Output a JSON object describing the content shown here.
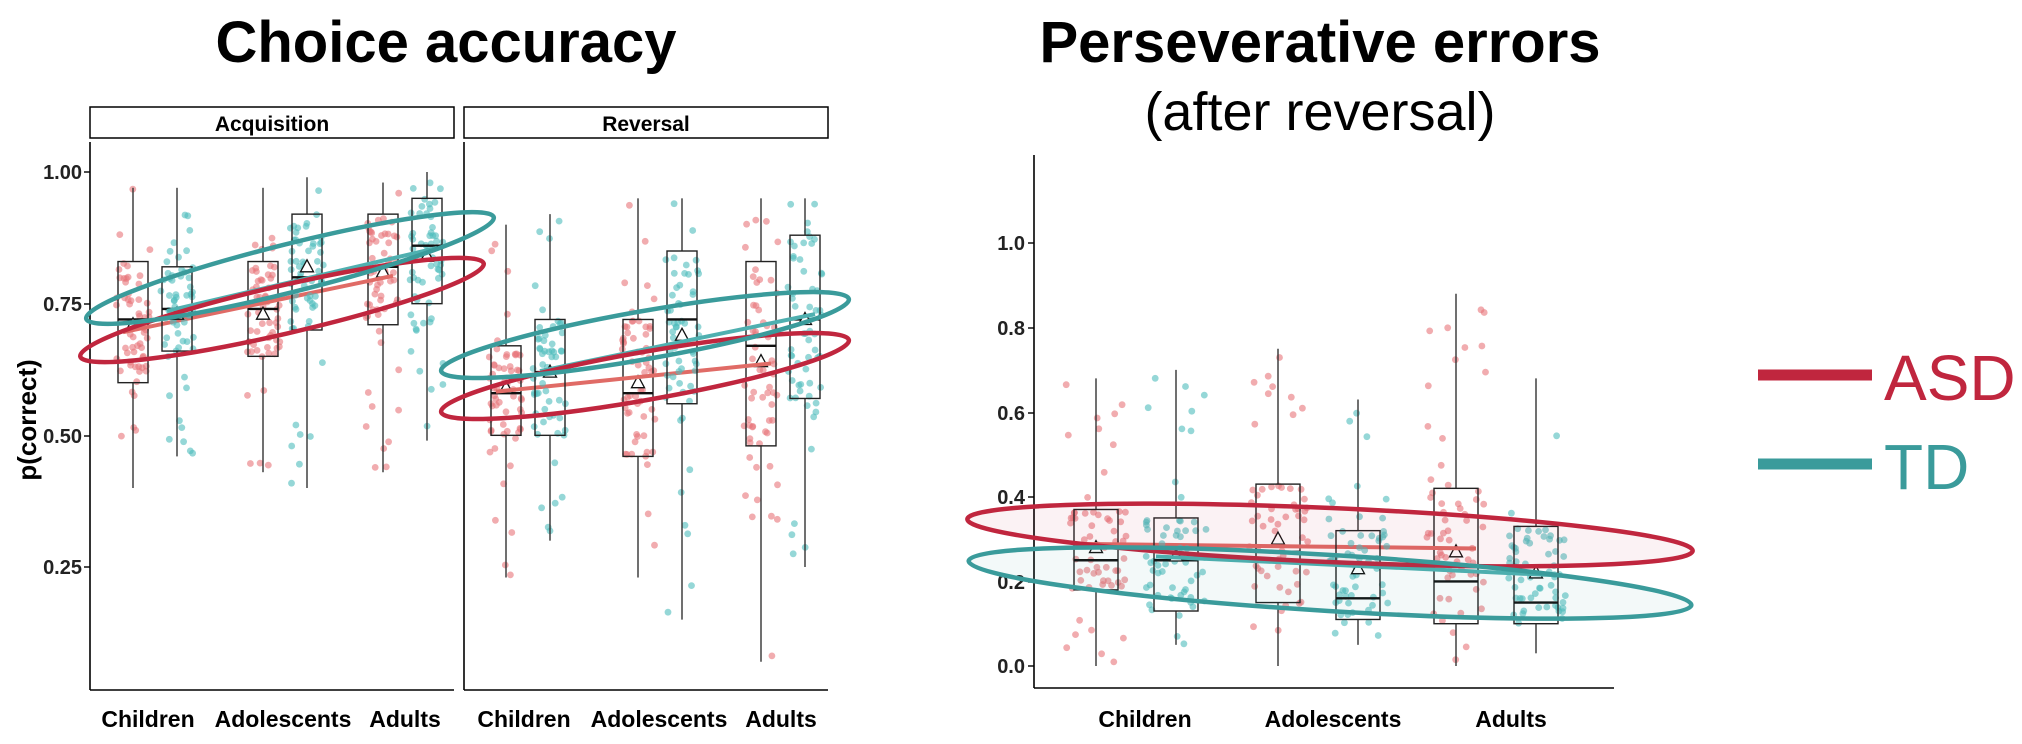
{
  "colors": {
    "asd": "#c0263e",
    "td": "#3a9b9b",
    "asd_dots": "#e8747a",
    "td_dots": "#4fbcbc",
    "axis": "#000000"
  },
  "legend": {
    "asd_label": "ASD",
    "td_label": "TD"
  },
  "chart_data": [
    {
      "type": "box",
      "title": "Choice accuracy",
      "ylabel": "p(correct)",
      "ylim": [
        0,
        1.05
      ],
      "yticks": [
        "1.00",
        "0.75",
        "0.50",
        "0.25"
      ],
      "yticks_values": [
        1.0,
        0.75,
        0.5,
        0.25
      ],
      "categories": [
        "Children",
        "Adolescents",
        "Adults"
      ],
      "facets": [
        {
          "label": "Acquisition",
          "series": [
            {
              "name": "ASD",
              "whisker_low": [
                0.4,
                0.43,
                0.43
              ],
              "q1": [
                0.6,
                0.65,
                0.71
              ],
              "median": [
                0.72,
                0.74,
                0.82
              ],
              "q3": [
                0.83,
                0.83,
                0.92
              ],
              "whisker_high": [
                0.97,
                0.97,
                0.98
              ],
              "mean": [
                0.71,
                0.73,
                0.81
              ]
            },
            {
              "name": "TD",
              "whisker_low": [
                0.46,
                0.4,
                0.49
              ],
              "q1": [
                0.66,
                0.7,
                0.75
              ],
              "median": [
                0.74,
                0.8,
                0.86
              ],
              "q3": [
                0.82,
                0.92,
                0.95
              ],
              "whisker_high": [
                0.97,
                0.99,
                1.0
              ],
              "mean": [
                0.73,
                0.82,
                0.84
              ]
            }
          ]
        },
        {
          "label": "Reversal",
          "series": [
            {
              "name": "ASD",
              "whisker_low": [
                0.23,
                0.23,
                0.07
              ],
              "q1": [
                0.5,
                0.46,
                0.48
              ],
              "median": [
                0.58,
                0.58,
                0.67
              ],
              "q3": [
                0.67,
                0.72,
                0.83
              ],
              "whisker_high": [
                0.9,
                0.95,
                0.95
              ],
              "mean": [
                0.59,
                0.6,
                0.64
              ]
            },
            {
              "name": "TD",
              "whisker_low": [
                0.3,
                0.15,
                0.25
              ],
              "q1": [
                0.5,
                0.56,
                0.57
              ],
              "median": [
                0.62,
                0.72,
                0.72
              ],
              "q3": [
                0.72,
                0.85,
                0.88
              ],
              "whisker_high": [
                0.92,
                0.95,
                0.95
              ],
              "mean": [
                0.62,
                0.69,
                0.72
              ]
            }
          ]
        }
      ]
    },
    {
      "type": "box",
      "title": "Perseverative errors",
      "subtitle": "(after reversal)",
      "ylim": [
        -0.02,
        1.2
      ],
      "yticks": [
        "1.0",
        "0.8",
        "0.6",
        "0.4",
        "0.2",
        "0.0"
      ],
      "yticks_values": [
        1.0,
        0.8,
        0.6,
        0.4,
        0.2,
        0.0
      ],
      "categories": [
        "Children",
        "Adolescents",
        "Adults"
      ],
      "series": [
        {
          "name": "ASD",
          "whisker_low": [
            0.0,
            0.0,
            0.0
          ],
          "q1": [
            0.18,
            0.15,
            0.1
          ],
          "median": [
            0.25,
            0.27,
            0.2
          ],
          "q3": [
            0.37,
            0.43,
            0.42
          ],
          "whisker_high": [
            0.68,
            0.75,
            0.88
          ],
          "mean": [
            0.28,
            0.3,
            0.27
          ]
        },
        {
          "name": "TD",
          "whisker_low": [
            0.05,
            0.05,
            0.03
          ],
          "q1": [
            0.13,
            0.11,
            0.1
          ],
          "median": [
            0.25,
            0.16,
            0.15
          ],
          "q3": [
            0.35,
            0.32,
            0.33
          ],
          "whisker_high": [
            0.7,
            0.63,
            0.68
          ],
          "mean": [
            0.26,
            0.23,
            0.22
          ]
        }
      ]
    }
  ]
}
